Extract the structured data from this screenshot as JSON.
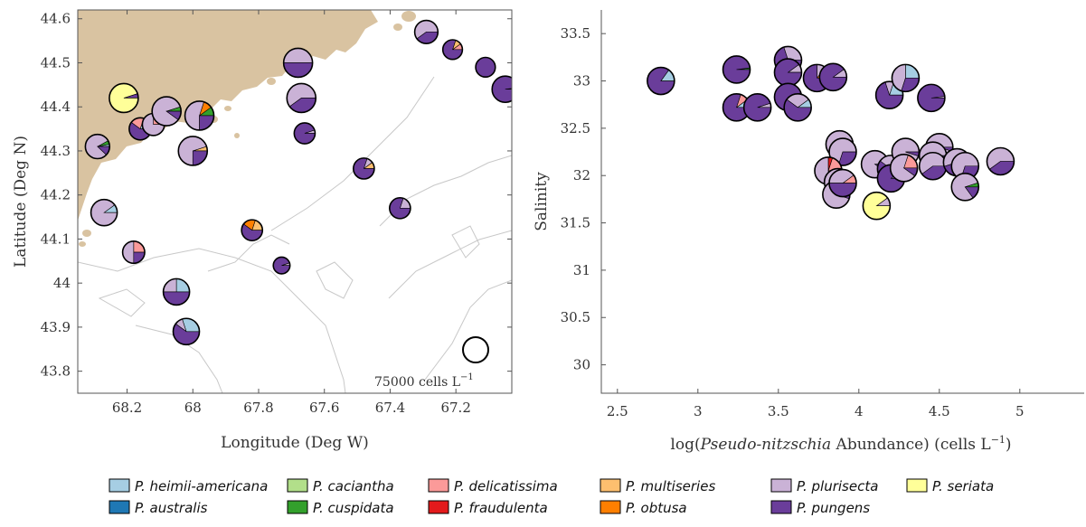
{
  "colors": {
    "P. heimii-americana": "#a6cee3",
    "P. australis": "#1f78b4",
    "P. caciantha": "#b2df8a",
    "P. cuspidata": "#33a02c",
    "P. delicatissima": "#fb9a99",
    "P. fraudulenta": "#e31a1c",
    "P. multiseries": "#fdbf6f",
    "P. obtusa": "#ff7f00",
    "P. plurisecta": "#cab2d6",
    "P. pungens": "#6a3d9a",
    "P. seriata": "#ffff99",
    "land": "#d9c3a1",
    "bathymetry": "#c8c8c8"
  },
  "legend": {
    "entries": [
      "P. heimii-americana",
      "P. caciantha",
      "P. delicatissima",
      "P. multiseries",
      "P. plurisecta",
      "P. seriata",
      "P. australis",
      "P. cuspidata",
      "P. fraudulenta",
      "P. obtusa",
      "P. pungens"
    ]
  },
  "map": {
    "xlabel": "Longitude (Deg W)",
    "ylabel": "Latitude (Deg N)",
    "scale_text": "75000 cells L",
    "scale_sup": "−1"
  },
  "scatter": {
    "xlabel_pre": "log(",
    "xlabel_italic": "Pseudo-nitzschia",
    "xlabel_post": " Abundance) (cells L",
    "xlabel_sup": "−1",
    "xlabel_end": ")",
    "ylabel": "Salinity"
  },
  "chart_data": [
    {
      "type": "map-pie",
      "xlabel": "Longitude (Deg W)",
      "ylabel": "Latitude (Deg N)",
      "xlim": [
        68.35,
        67.03
      ],
      "ylim": [
        43.75,
        44.62
      ],
      "xticks": [
        68.2,
        68,
        67.8,
        67.6,
        67.4,
        67.2
      ],
      "xtick_labels": [
        "68.2",
        "68",
        "67.8",
        "67.6",
        "67.4",
        "67.2"
      ],
      "yticks": [
        43.8,
        43.9,
        44,
        44.1,
        44.2,
        44.3,
        44.4,
        44.5,
        44.6
      ],
      "ytick_labels": [
        "43.8",
        "43.9",
        "44",
        "44.1",
        "44.2",
        "44.3",
        "44.4",
        "44.5",
        "44.6"
      ],
      "reference_abundance_cells_per_L": 75000,
      "stations": [
        {
          "lon": 68.29,
          "lat": 44.31,
          "abundance": 50000,
          "composition": {
            "P. plurisecta": 0.8,
            "P. pungens": 0.12,
            "P. cuspidata": 0.05,
            "P. heimii-americana": 0.03
          }
        },
        {
          "lon": 68.21,
          "lat": 44.42,
          "abundance": 75000,
          "composition": {
            "P. seriata": 0.95,
            "P. pungens": 0.05
          }
        },
        {
          "lon": 68.16,
          "lat": 44.35,
          "abundance": 40000,
          "composition": {
            "P. pungens": 0.6,
            "P. delicatissima": 0.2,
            "P. heimii-americana": 0.2
          }
        },
        {
          "lon": 68.12,
          "lat": 44.36,
          "abundance": 40000,
          "composition": {
            "P. plurisecta": 0.75,
            "P. delicatissima": 0.25
          }
        },
        {
          "lon": 68.08,
          "lat": 44.39,
          "abundance": 75000,
          "composition": {
            "P. plurisecta": 0.85,
            "P. pungens": 0.1,
            "P. cuspidata": 0.05
          }
        },
        {
          "lon": 67.98,
          "lat": 44.38,
          "abundance": 75000,
          "composition": {
            "P. plurisecta": 0.55,
            "P. pungens": 0.25,
            "P. obtusa": 0.1,
            "P. cuspidata": 0.1
          }
        },
        {
          "lon": 68.0,
          "lat": 44.3,
          "abundance": 75000,
          "composition": {
            "P. plurisecta": 0.7,
            "P. pungens": 0.25,
            "P. multiseries": 0.05
          }
        },
        {
          "lon": 67.68,
          "lat": 44.5,
          "abundance": 75000,
          "composition": {
            "P. plurisecta": 0.5,
            "P. pungens": 0.5
          }
        },
        {
          "lon": 67.67,
          "lat": 44.42,
          "abundance": 75000,
          "composition": {
            "P. plurisecta": 0.6,
            "P. pungens": 0.4
          }
        },
        {
          "lon": 67.66,
          "lat": 44.34,
          "abundance": 35000,
          "composition": {
            "P. pungens": 0.95,
            "P. plurisecta": 0.05
          }
        },
        {
          "lon": 67.48,
          "lat": 44.26,
          "abundance": 35000,
          "composition": {
            "P. pungens": 0.8,
            "P. plurisecta": 0.1,
            "P. multiseries": 0.1
          }
        },
        {
          "lon": 67.37,
          "lat": 44.17,
          "abundance": 35000,
          "composition": {
            "P. pungens": 0.8,
            "P. plurisecta": 0.2
          }
        },
        {
          "lon": 67.82,
          "lat": 44.12,
          "abundance": 35000,
          "composition": {
            "P. pungens": 0.6,
            "P. obtusa": 0.2,
            "P. multiseries": 0.2
          }
        },
        {
          "lon": 67.73,
          "lat": 44.04,
          "abundance": 20000,
          "composition": {
            "P. pungens": 0.95,
            "P. plurisecta": 0.05
          }
        },
        {
          "lon": 68.27,
          "lat": 44.16,
          "abundance": 60000,
          "composition": {
            "P. plurisecta": 0.9,
            "P. heimii-americana": 0.1
          }
        },
        {
          "lon": 68.18,
          "lat": 44.07,
          "abundance": 40000,
          "composition": {
            "P. plurisecta": 0.5,
            "P. pungens": 0.25,
            "P. delicatissima": 0.25
          }
        },
        {
          "lon": 68.05,
          "lat": 43.98,
          "abundance": 60000,
          "composition": {
            "P. pungens": 0.5,
            "P. plurisecta": 0.25,
            "P. heimii-americana": 0.25
          }
        },
        {
          "lon": 68.02,
          "lat": 43.89,
          "abundance": 60000,
          "composition": {
            "P. pungens": 0.6,
            "P. heimii-americana": 0.3,
            "P. plurisecta": 0.1
          }
        },
        {
          "lon": 67.29,
          "lat": 44.57,
          "abundance": 45000,
          "composition": {
            "P. plurisecta": 0.6,
            "P. pungens": 0.4
          }
        },
        {
          "lon": 67.21,
          "lat": 44.53,
          "abundance": 30000,
          "composition": {
            "P. pungens": 0.8,
            "P. delicatissima": 0.1,
            "P. multiseries": 0.1
          }
        },
        {
          "lon": 67.11,
          "lat": 44.49,
          "abundance": 30000,
          "composition": {
            "P. pungens": 1.0
          }
        },
        {
          "lon": 67.05,
          "lat": 44.44,
          "abundance": 60000,
          "composition": {
            "P. pungens": 0.98,
            "P. cuspidata": 0.02
          }
        }
      ]
    },
    {
      "type": "scatter-pie",
      "xlabel": "log(Pseudo-nitzschia Abundance) (cells L−1)",
      "ylabel": "Salinity",
      "xlim": [
        2.4,
        5.4
      ],
      "ylim": [
        29.7,
        33.75
      ],
      "xticks": [
        2.5,
        3,
        3.5,
        4,
        4.5,
        5
      ],
      "xtick_labels": [
        "2.5",
        "3",
        "3.5",
        "4",
        "4.5",
        "5"
      ],
      "yticks": [
        30,
        30.5,
        31,
        31.5,
        32,
        32.5,
        33,
        33.5
      ],
      "ytick_labels": [
        "30",
        "30.5",
        "31",
        "31.5",
        "32",
        "32.5",
        "33",
        "33.5"
      ],
      "points": [
        {
          "x": 2.77,
          "y": 33.0,
          "composition": {
            "P. pungens": 0.85,
            "P. heimii-americana": 0.15
          }
        },
        {
          "x": 3.24,
          "y": 33.12,
          "composition": {
            "P. pungens": 0.98,
            "P. cuspidata": 0.02
          }
        },
        {
          "x": 3.24,
          "y": 32.72,
          "composition": {
            "P. pungens": 0.8,
            "P. delicatissima": 0.1,
            "P. heimii-americana": 0.1
          }
        },
        {
          "x": 3.37,
          "y": 32.72,
          "composition": {
            "P. pungens": 0.95,
            "P. plurisecta": 0.05
          }
        },
        {
          "x": 3.56,
          "y": 33.22,
          "composition": {
            "P. pungens": 0.7,
            "P. plurisecta": 0.3
          }
        },
        {
          "x": 3.56,
          "y": 33.09,
          "composition": {
            "P. pungens": 0.9,
            "P. plurisecta": 0.1
          }
        },
        {
          "x": 3.56,
          "y": 32.83,
          "composition": {
            "P. pungens": 0.95,
            "P. plurisecta": 0.05
          }
        },
        {
          "x": 3.62,
          "y": 32.72,
          "composition": {
            "P. pungens": 0.6,
            "P. plurisecta": 0.3,
            "P. heimii-americana": 0.1
          }
        },
        {
          "x": 3.74,
          "y": 33.03,
          "composition": {
            "P. pungens": 0.75,
            "P. obtusa": 0.15,
            "P. plurisecta": 0.1
          }
        },
        {
          "x": 3.84,
          "y": 33.04,
          "composition": {
            "P. pungens": 0.9,
            "P. plurisecta": 0.1
          }
        },
        {
          "x": 4.19,
          "y": 32.85,
          "composition": {
            "P. pungens": 0.7,
            "P. heimii-americana": 0.2,
            "P. plurisecta": 0.1
          }
        },
        {
          "x": 4.29,
          "y": 33.03,
          "composition": {
            "P. plurisecta": 0.45,
            "P. pungens": 0.3,
            "P. heimii-americana": 0.25
          }
        },
        {
          "x": 4.45,
          "y": 32.82,
          "composition": {
            "P. pungens": 0.98,
            "P. plurisecta": 0.02
          }
        },
        {
          "x": 3.88,
          "y": 32.33,
          "composition": {
            "P. plurisecta": 0.9,
            "P. pungens": 0.1
          }
        },
        {
          "x": 3.9,
          "y": 32.25,
          "composition": {
            "P. plurisecta": 0.7,
            "P. pungens": 0.3
          }
        },
        {
          "x": 3.81,
          "y": 32.05,
          "composition": {
            "P. plurisecta": 0.55,
            "P. pungens": 0.2,
            "P. delicatissima": 0.2,
            "P. fraudulenta": 0.05
          }
        },
        {
          "x": 3.87,
          "y": 31.93,
          "composition": {
            "P. plurisecta": 0.6,
            "P. pungens": 0.3,
            "P. delicatissima": 0.1
          }
        },
        {
          "x": 3.86,
          "y": 31.8,
          "composition": {
            "P. plurisecta": 0.95,
            "P. pungens": 0.05
          }
        },
        {
          "x": 3.9,
          "y": 31.92,
          "composition": {
            "P. pungens": 0.5,
            "P. plurisecta": 0.4,
            "P. delicatissima": 0.1
          }
        },
        {
          "x": 4.1,
          "y": 32.12,
          "composition": {
            "P. plurisecta": 0.9,
            "P. pungens": 0.1
          }
        },
        {
          "x": 4.2,
          "y": 32.07,
          "composition": {
            "P. pungens": 0.6,
            "P. delicatissima": 0.2,
            "P. plurisecta": 0.2
          }
        },
        {
          "x": 4.2,
          "y": 31.97,
          "composition": {
            "P. pungens": 0.9,
            "P. plurisecta": 0.1
          }
        },
        {
          "x": 4.29,
          "y": 32.25,
          "composition": {
            "P. plurisecta": 0.95,
            "P. pungens": 0.05
          }
        },
        {
          "x": 4.28,
          "y": 32.08,
          "composition": {
            "P. plurisecta": 0.7,
            "P. pungens": 0.1,
            "P. delicatissima": 0.2
          }
        },
        {
          "x": 4.11,
          "y": 31.68,
          "composition": {
            "P. seriata": 0.9,
            "P. plurisecta": 0.1
          }
        },
        {
          "x": 4.5,
          "y": 32.3,
          "composition": {
            "P. plurisecta": 0.95,
            "P. pungens": 0.05
          }
        },
        {
          "x": 4.46,
          "y": 32.21,
          "composition": {
            "P. plurisecta": 0.85,
            "P. pungens": 0.15
          }
        },
        {
          "x": 4.46,
          "y": 32.1,
          "composition": {
            "P. plurisecta": 0.6,
            "P. pungens": 0.4
          }
        },
        {
          "x": 4.61,
          "y": 32.14,
          "composition": {
            "P. pungens": 0.45,
            "P. plurisecta": 0.45,
            "P. multiseries": 0.1
          }
        },
        {
          "x": 4.66,
          "y": 32.1,
          "composition": {
            "P. plurisecta": 0.7,
            "P. pungens": 0.3
          }
        },
        {
          "x": 4.66,
          "y": 31.88,
          "composition": {
            "P. plurisecta": 0.8,
            "P. pungens": 0.15,
            "P. cuspidata": 0.05
          }
        },
        {
          "x": 4.88,
          "y": 32.15,
          "composition": {
            "P. plurisecta": 0.6,
            "P. pungens": 0.4
          }
        }
      ]
    }
  ]
}
